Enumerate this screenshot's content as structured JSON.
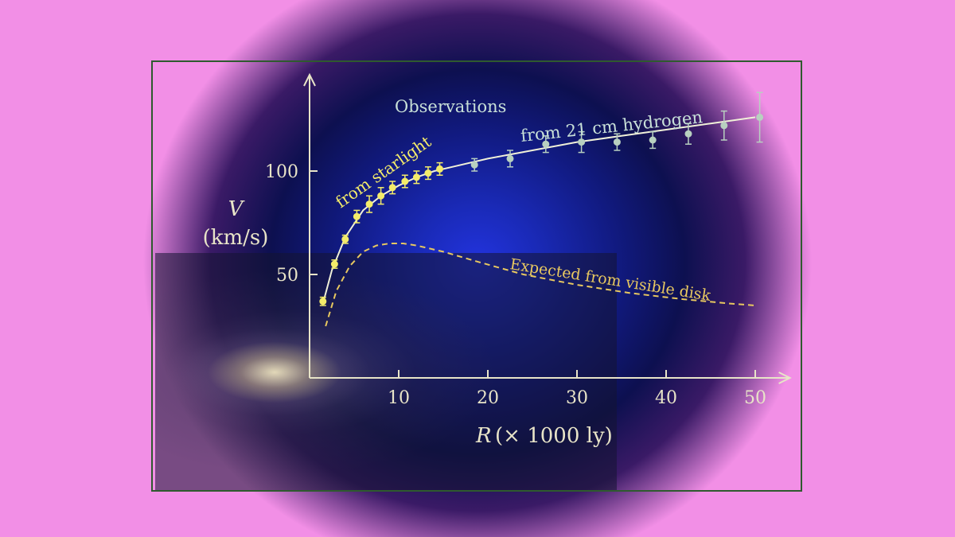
{
  "colors": {
    "background": "#f28fe6",
    "axis": "#e8e4c8",
    "starlight_points": "#f4ec6a",
    "hydrogen_points": "#b8d0c0",
    "fit_curve": "#f0f0d8",
    "expected_curve": "#e8c860",
    "frame": "#2f5a2f"
  },
  "chart_data": {
    "type": "scatter",
    "xlabel_var": "R",
    "xlabel_unit": "(× 1000 ly)",
    "ylabel_var": "V",
    "ylabel_unit": "(km/s)",
    "xlim": [
      0,
      53
    ],
    "ylim": [
      0,
      145
    ],
    "x_ticks": [
      10,
      20,
      30,
      40,
      50
    ],
    "y_ticks": [
      50,
      100
    ],
    "annotations": {
      "observations": "Observations",
      "starlight": "from starlight",
      "hydrogen": "from 21 cm hydrogen",
      "expected": "Expected from visible disk"
    },
    "series": [
      {
        "name": "from starlight",
        "x": [
          1.5,
          2.8,
          4.0,
          5.3,
          6.7,
          8.0,
          9.3,
          10.7,
          12.0,
          13.3,
          14.6
        ],
        "y": [
          37,
          55,
          67,
          78,
          84,
          88,
          92,
          95,
          97,
          99,
          101
        ],
        "err": [
          2,
          2,
          2,
          3,
          4,
          4,
          3,
          3,
          3,
          3,
          3
        ]
      },
      {
        "name": "from 21 cm hydrogen",
        "x": [
          18.5,
          22.5,
          26.5,
          30.5,
          34.5,
          38.5,
          42.5,
          46.5,
          50.5
        ],
        "y": [
          103,
          106,
          113,
          114,
          114,
          115,
          118,
          122,
          126
        ],
        "err": [
          3,
          4,
          4,
          5,
          4,
          4,
          5,
          7,
          12
        ]
      },
      {
        "name": "fit",
        "x": [
          1.5,
          2.5,
          4,
          6,
          8,
          10,
          12,
          14,
          16,
          20,
          25,
          30,
          35,
          40,
          45,
          50
        ],
        "y": [
          36,
          52,
          68,
          81,
          88,
          93,
          97,
          100,
          102,
          106,
          110,
          114,
          117,
          120,
          123,
          126
        ]
      },
      {
        "name": "Expected from visible disk",
        "x": [
          1.8,
          3,
          4.5,
          6,
          7.5,
          9,
          10.5,
          12,
          15,
          19,
          24,
          30,
          36,
          42,
          47,
          50
        ],
        "y": [
          25,
          42,
          54,
          61,
          64,
          65,
          65,
          64,
          61,
          56,
          50,
          45,
          41,
          38,
          36,
          35
        ]
      }
    ]
  }
}
